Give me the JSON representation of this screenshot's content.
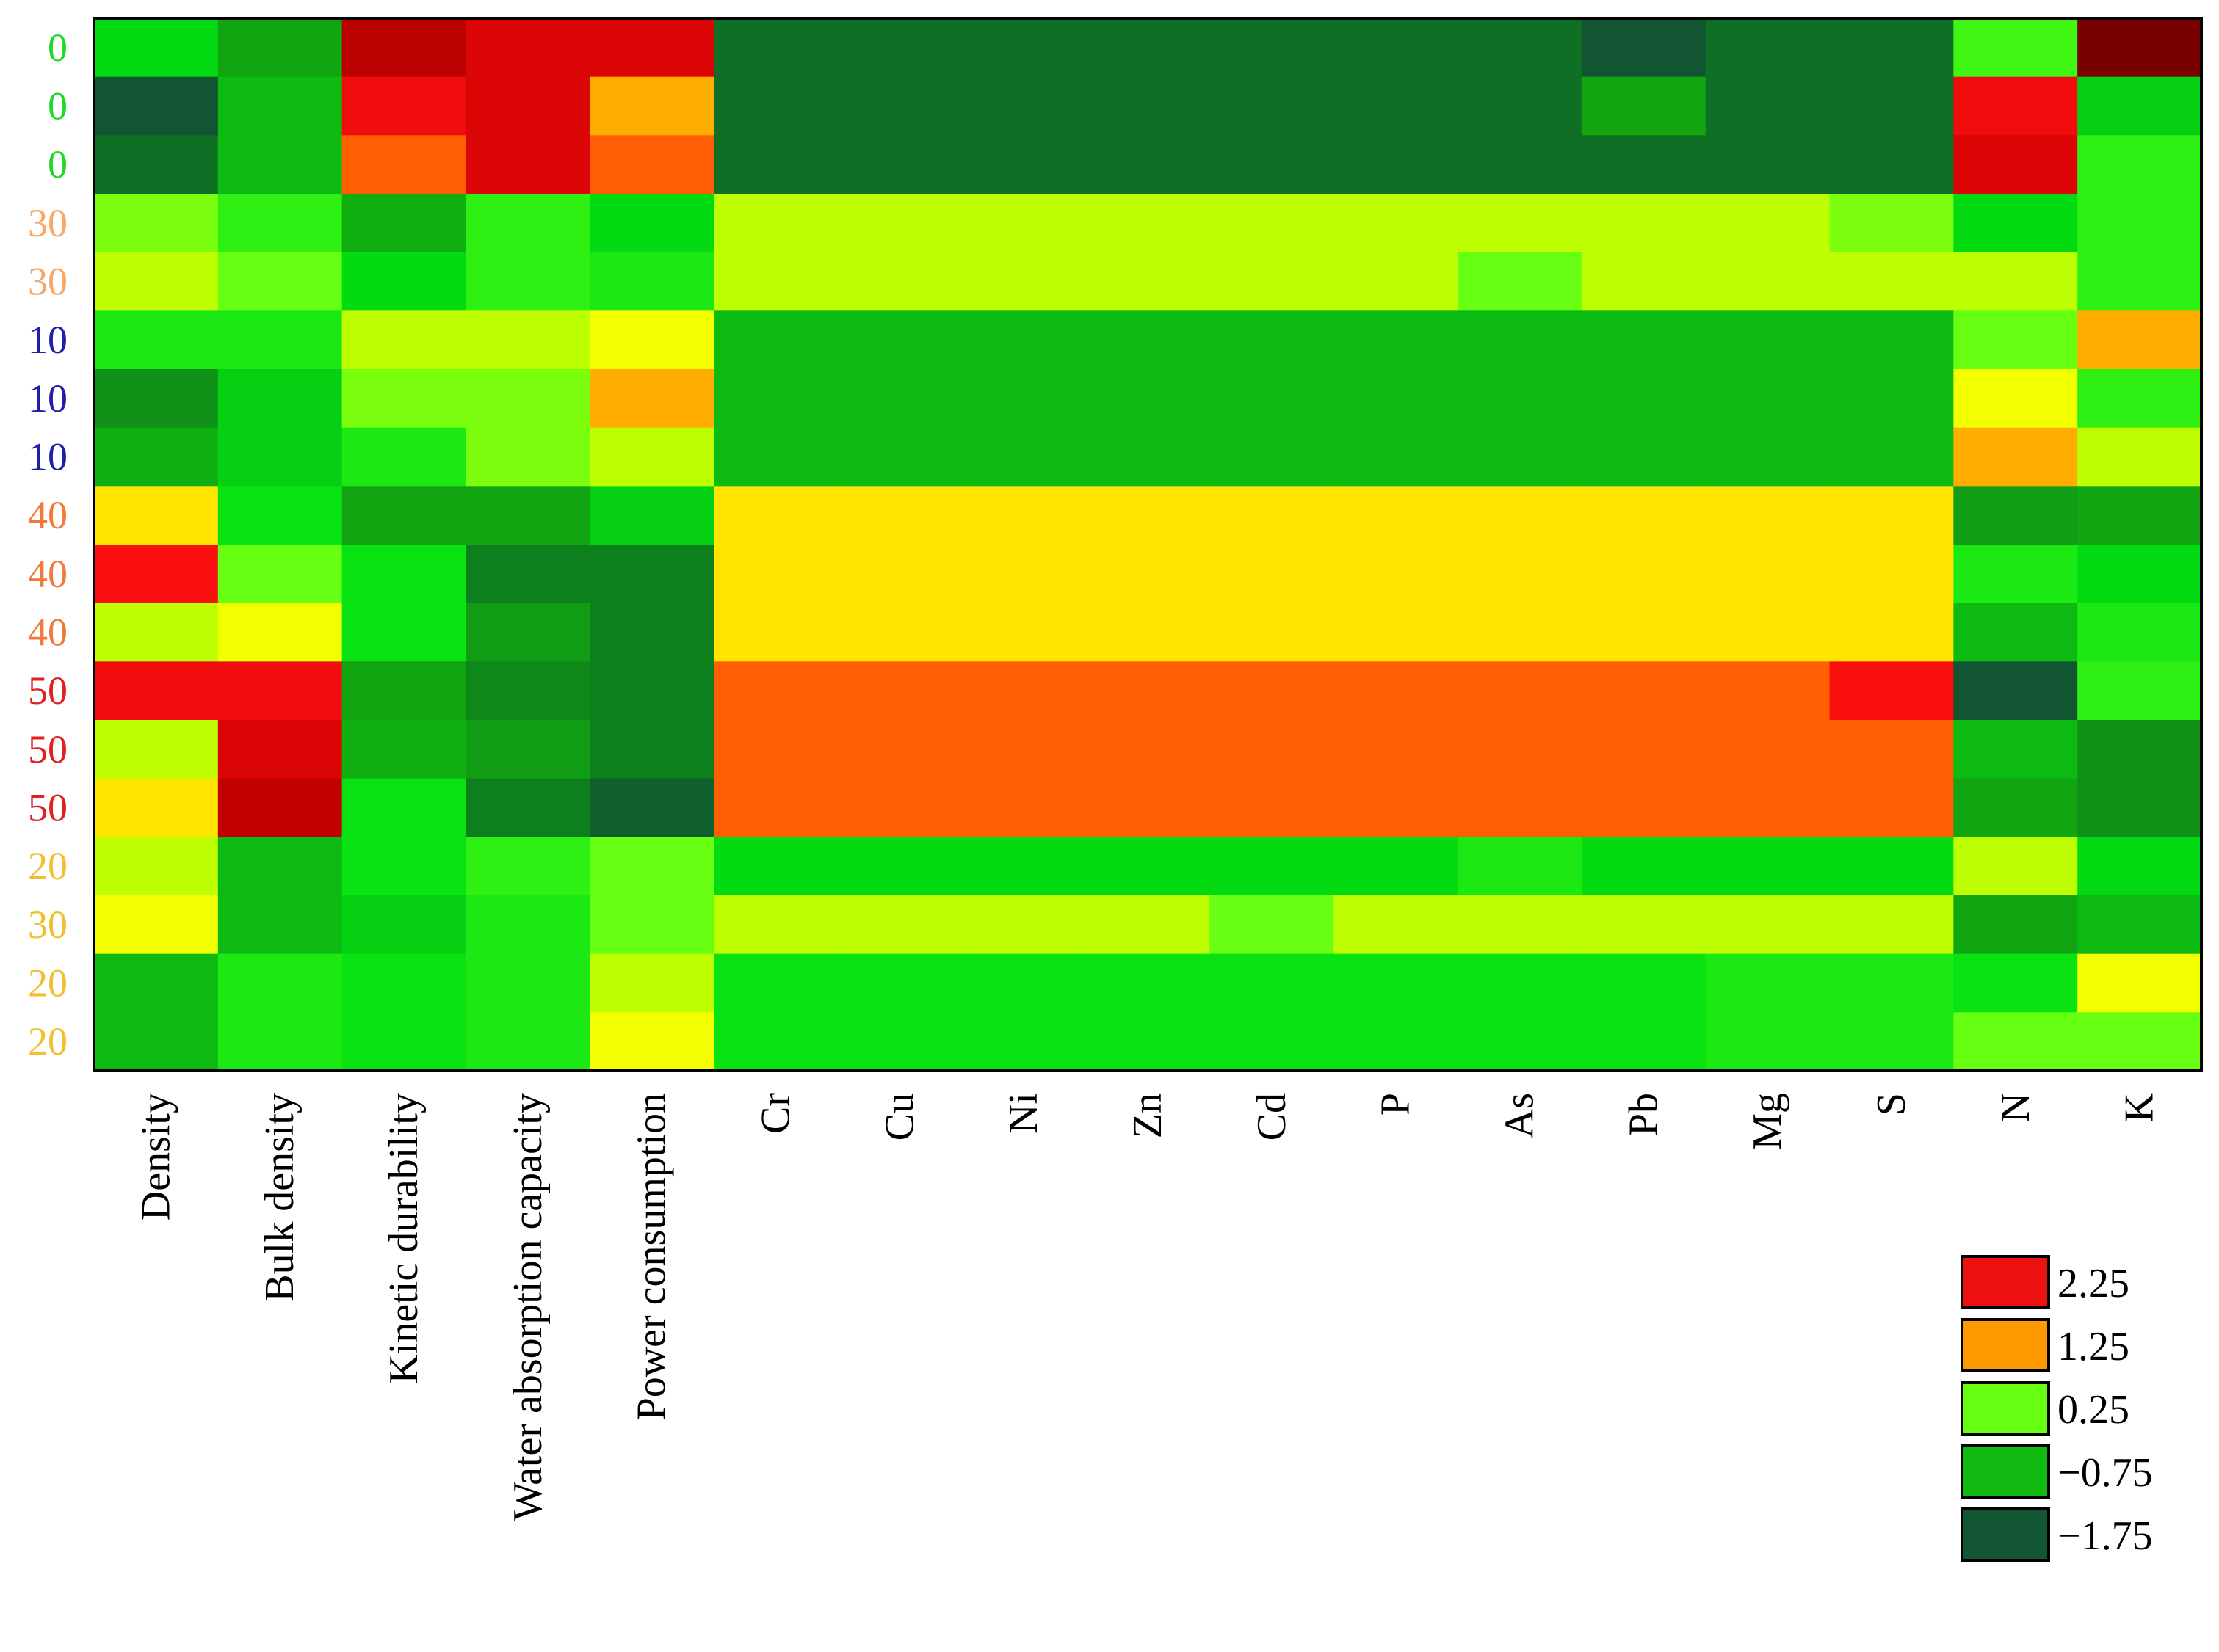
{
  "chart_data": {
    "type": "heatmap",
    "title": "",
    "xlabel": "",
    "ylabel": "",
    "columns": [
      "Density",
      "Bulk density",
      "Kinetic durability",
      "Water absorption capacity",
      "Power consumption",
      "Cr",
      "Cu",
      "Ni",
      "Zn",
      "Cd",
      "P",
      "As",
      "Pb",
      "Mg",
      "S",
      "N",
      "K"
    ],
    "rows": [
      "0",
      "0",
      "0",
      "30",
      "30",
      "10",
      "10",
      "10",
      "40",
      "40",
      "40",
      "50",
      "50",
      "50",
      "20",
      "30",
      "20",
      "20"
    ],
    "row_label_colors": [
      "#22d62a",
      "#22d62a",
      "#22d62a",
      "#f5a86a",
      "#f5a86a",
      "#1e1ea6",
      "#1e1ea6",
      "#1e1ea6",
      "#f07a3c",
      "#f07a3c",
      "#f07a3c",
      "#e02020",
      "#e02020",
      "#e02020",
      "#f0c030",
      "#f0c030",
      "#f0c030",
      "#f0c030"
    ],
    "values": [
      [
        -0.3,
        -0.8,
        3.0,
        2.6,
        2.6,
        -1.4,
        -1.4,
        -1.4,
        -1.4,
        -1.4,
        -1.4,
        -1.4,
        -1.9,
        -1.4,
        -1.4,
        0.1,
        4.0
      ],
      [
        -1.8,
        -0.6,
        2.4,
        2.6,
        1.4,
        -1.4,
        -1.4,
        -1.4,
        -1.4,
        -1.4,
        -1.4,
        -1.4,
        -0.8,
        -1.4,
        -1.4,
        2.4,
        -0.4
      ],
      [
        -1.4,
        -0.6,
        1.8,
        2.6,
        1.8,
        -1.4,
        -1.4,
        -1.4,
        -1.4,
        -1.4,
        -1.4,
        -1.4,
        -1.4,
        -1.4,
        -1.4,
        2.6,
        0.0
      ],
      [
        0.4,
        0.0,
        -0.7,
        0.0,
        -0.3,
        0.7,
        0.7,
        0.7,
        0.7,
        0.7,
        0.7,
        0.7,
        0.7,
        0.7,
        0.4,
        -0.3,
        0.0
      ],
      [
        0.7,
        0.3,
        -0.3,
        0.0,
        -0.1,
        0.7,
        0.7,
        0.7,
        0.7,
        0.7,
        0.7,
        0.3,
        0.7,
        0.7,
        0.7,
        0.7,
        0.0
      ],
      [
        -0.1,
        -0.1,
        0.7,
        0.7,
        0.9,
        -0.6,
        -0.6,
        -0.6,
        -0.6,
        -0.6,
        -0.6,
        -0.6,
        -0.6,
        -0.6,
        -0.6,
        0.3,
        1.4
      ],
      [
        -1.0,
        -0.4,
        0.4,
        0.4,
        1.4,
        -0.6,
        -0.6,
        -0.6,
        -0.6,
        -0.6,
        -0.6,
        -0.6,
        -0.6,
        -0.6,
        -0.6,
        0.9,
        0.0
      ],
      [
        -0.7,
        -0.4,
        -0.1,
        0.4,
        0.7,
        -0.6,
        -0.6,
        -0.6,
        -0.6,
        -0.6,
        -0.6,
        -0.6,
        -0.6,
        -0.6,
        -0.6,
        1.4,
        0.7
      ],
      [
        1.1,
        -0.2,
        -0.8,
        -0.8,
        -0.4,
        1.1,
        1.1,
        1.1,
        1.1,
        1.1,
        1.1,
        1.1,
        1.1,
        1.1,
        1.1,
        -0.9,
        -0.8
      ],
      [
        2.3,
        0.3,
        -0.2,
        -1.2,
        -1.2,
        1.1,
        1.1,
        1.1,
        1.1,
        1.1,
        1.1,
        1.1,
        1.1,
        1.1,
        1.1,
        -0.1,
        -0.3
      ],
      [
        0.7,
        0.9,
        -0.2,
        -0.9,
        -1.2,
        1.1,
        1.1,
        1.1,
        1.1,
        1.1,
        1.1,
        1.1,
        1.1,
        1.1,
        1.1,
        -0.6,
        -0.1
      ],
      [
        2.4,
        2.4,
        -0.8,
        -1.1,
        -1.2,
        1.8,
        1.8,
        1.8,
        1.8,
        1.8,
        1.8,
        1.8,
        1.8,
        1.8,
        2.3,
        -1.8,
        0.0
      ],
      [
        0.7,
        2.6,
        -0.7,
        -0.9,
        -1.2,
        1.8,
        1.8,
        1.8,
        1.8,
        1.8,
        1.8,
        1.8,
        1.8,
        1.8,
        1.8,
        -0.6,
        -1.0
      ],
      [
        1.1,
        2.9,
        -0.2,
        -1.2,
        -1.6,
        1.8,
        1.8,
        1.8,
        1.8,
        1.8,
        1.8,
        1.8,
        1.8,
        1.8,
        1.8,
        -0.8,
        -1.0
      ],
      [
        0.7,
        -0.6,
        -0.2,
        0.0,
        0.3,
        -0.3,
        -0.3,
        -0.3,
        -0.3,
        -0.3,
        -0.3,
        -0.1,
        -0.3,
        -0.3,
        -0.3,
        0.7,
        -0.3
      ],
      [
        0.9,
        -0.6,
        -0.4,
        -0.1,
        0.3,
        0.7,
        0.7,
        0.7,
        0.7,
        0.3,
        0.7,
        0.7,
        0.7,
        0.7,
        0.7,
        -0.8,
        -0.6
      ],
      [
        -0.6,
        -0.1,
        -0.2,
        -0.1,
        0.7,
        -0.2,
        -0.2,
        -0.2,
        -0.2,
        -0.2,
        -0.2,
        -0.2,
        -0.2,
        -0.1,
        -0.1,
        -0.2,
        0.9
      ],
      [
        -0.6,
        -0.1,
        -0.2,
        -0.1,
        0.9,
        -0.2,
        -0.2,
        -0.2,
        -0.2,
        -0.2,
        -0.2,
        -0.2,
        -0.2,
        -0.1,
        -0.1,
        0.3,
        0.3
      ]
    ],
    "legend": {
      "placement": "bottom-right",
      "entries": [
        {
          "label": "2.25",
          "value": 2.25,
          "color": "#ee1111"
        },
        {
          "label": "1.25",
          "value": 1.25,
          "color": "#ff9900"
        },
        {
          "label": "0.25",
          "value": 0.25,
          "color": "#66ff11"
        },
        {
          "label": "−0.75",
          "value": -0.75,
          "color": "#11bb11"
        },
        {
          "label": "−1.75",
          "value": -1.75,
          "color": "#115533"
        }
      ]
    },
    "color_scale": [
      {
        "value": -1.75,
        "color": "#115533"
      },
      {
        "value": -1.25,
        "color": "#0e7a1e"
      },
      {
        "value": -0.75,
        "color": "#11aa11"
      },
      {
        "value": -0.25,
        "color": "#00e012"
      },
      {
        "value": 0.25,
        "color": "#5cff14"
      },
      {
        "value": 0.75,
        "color": "#c8ff00"
      },
      {
        "value": 0.95,
        "color": "#ffff00"
      },
      {
        "value": 1.25,
        "color": "#ffcc00"
      },
      {
        "value": 1.75,
        "color": "#ff6600"
      },
      {
        "value": 2.25,
        "color": "#ff1111"
      },
      {
        "value": 2.75,
        "color": "#cc0000"
      },
      {
        "value": 3.5,
        "color": "#990000"
      },
      {
        "value": 4.0,
        "color": "#7a0000"
      }
    ],
    "grid": false
  }
}
